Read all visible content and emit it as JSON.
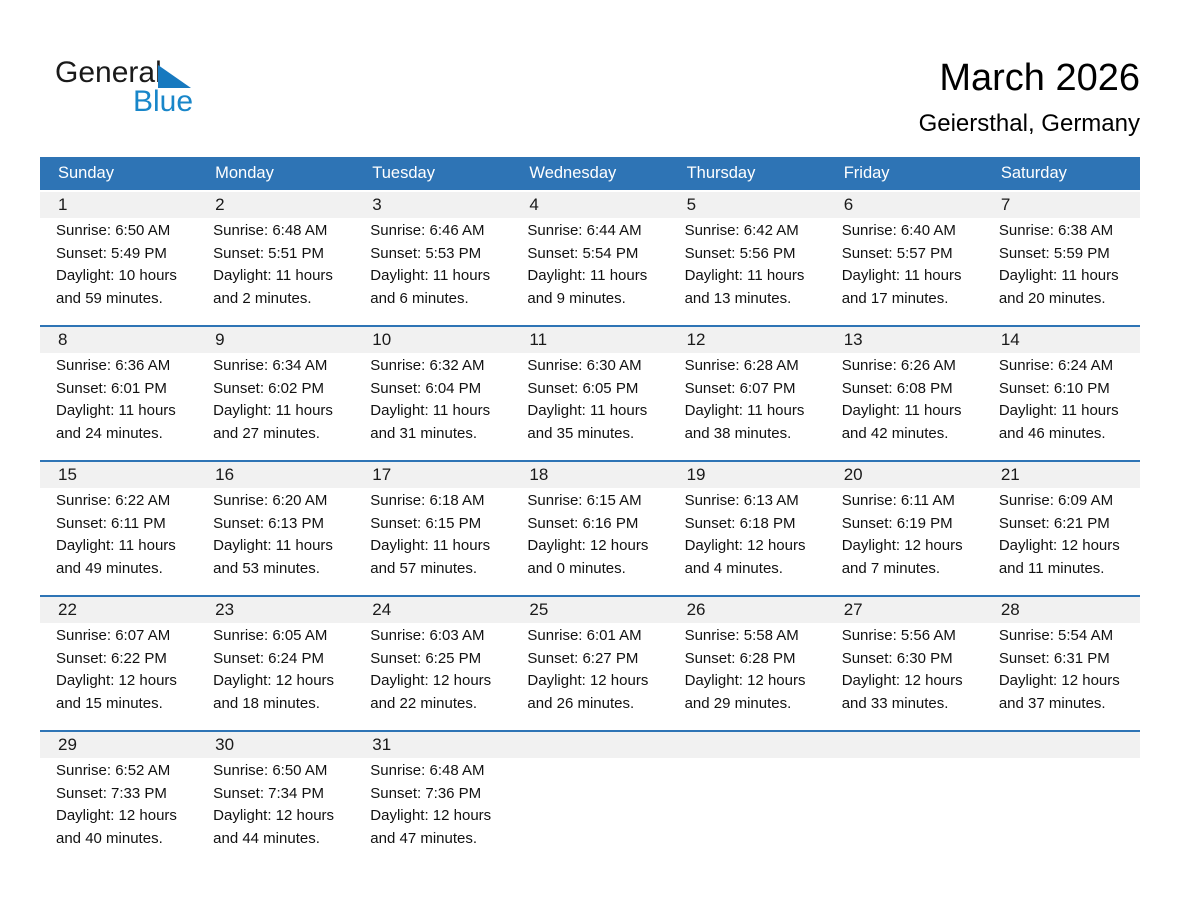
{
  "logo": {
    "general": "General",
    "blue": "Blue"
  },
  "header": {
    "title": "March 2026",
    "subtitle": "Geiersthal, Germany"
  },
  "weekdays": [
    "Sunday",
    "Monday",
    "Tuesday",
    "Wednesday",
    "Thursday",
    "Friday",
    "Saturday"
  ],
  "colors": {
    "header_bar": "#2E74B5",
    "week_divider": "#2E74B5",
    "day_band_bg": "#F1F1F1",
    "logo_blue": "#1886C9",
    "logo_triangle": "#1779BF"
  },
  "weeks": [
    {
      "days": [
        {
          "num": "1",
          "lines": [
            "Sunrise: 6:50 AM",
            "Sunset: 5:49 PM",
            "Daylight: 10 hours",
            "and 59 minutes."
          ]
        },
        {
          "num": "2",
          "lines": [
            "Sunrise: 6:48 AM",
            "Sunset: 5:51 PM",
            "Daylight: 11 hours",
            "and 2 minutes."
          ]
        },
        {
          "num": "3",
          "lines": [
            "Sunrise: 6:46 AM",
            "Sunset: 5:53 PM",
            "Daylight: 11 hours",
            "and 6 minutes."
          ]
        },
        {
          "num": "4",
          "lines": [
            "Sunrise: 6:44 AM",
            "Sunset: 5:54 PM",
            "Daylight: 11 hours",
            "and 9 minutes."
          ]
        },
        {
          "num": "5",
          "lines": [
            "Sunrise: 6:42 AM",
            "Sunset: 5:56 PM",
            "Daylight: 11 hours",
            "and 13 minutes."
          ]
        },
        {
          "num": "6",
          "lines": [
            "Sunrise: 6:40 AM",
            "Sunset: 5:57 PM",
            "Daylight: 11 hours",
            "and 17 minutes."
          ]
        },
        {
          "num": "7",
          "lines": [
            "Sunrise: 6:38 AM",
            "Sunset: 5:59 PM",
            "Daylight: 11 hours",
            "and 20 minutes."
          ]
        }
      ]
    },
    {
      "days": [
        {
          "num": "8",
          "lines": [
            "Sunrise: 6:36 AM",
            "Sunset: 6:01 PM",
            "Daylight: 11 hours",
            "and 24 minutes."
          ]
        },
        {
          "num": "9",
          "lines": [
            "Sunrise: 6:34 AM",
            "Sunset: 6:02 PM",
            "Daylight: 11 hours",
            "and 27 minutes."
          ]
        },
        {
          "num": "10",
          "lines": [
            "Sunrise: 6:32 AM",
            "Sunset: 6:04 PM",
            "Daylight: 11 hours",
            "and 31 minutes."
          ]
        },
        {
          "num": "11",
          "lines": [
            "Sunrise: 6:30 AM",
            "Sunset: 6:05 PM",
            "Daylight: 11 hours",
            "and 35 minutes."
          ]
        },
        {
          "num": "12",
          "lines": [
            "Sunrise: 6:28 AM",
            "Sunset: 6:07 PM",
            "Daylight: 11 hours",
            "and 38 minutes."
          ]
        },
        {
          "num": "13",
          "lines": [
            "Sunrise: 6:26 AM",
            "Sunset: 6:08 PM",
            "Daylight: 11 hours",
            "and 42 minutes."
          ]
        },
        {
          "num": "14",
          "lines": [
            "Sunrise: 6:24 AM",
            "Sunset: 6:10 PM",
            "Daylight: 11 hours",
            "and 46 minutes."
          ]
        }
      ]
    },
    {
      "days": [
        {
          "num": "15",
          "lines": [
            "Sunrise: 6:22 AM",
            "Sunset: 6:11 PM",
            "Daylight: 11 hours",
            "and 49 minutes."
          ]
        },
        {
          "num": "16",
          "lines": [
            "Sunrise: 6:20 AM",
            "Sunset: 6:13 PM",
            "Daylight: 11 hours",
            "and 53 minutes."
          ]
        },
        {
          "num": "17",
          "lines": [
            "Sunrise: 6:18 AM",
            "Sunset: 6:15 PM",
            "Daylight: 11 hours",
            "and 57 minutes."
          ]
        },
        {
          "num": "18",
          "lines": [
            "Sunrise: 6:15 AM",
            "Sunset: 6:16 PM",
            "Daylight: 12 hours",
            "and 0 minutes."
          ]
        },
        {
          "num": "19",
          "lines": [
            "Sunrise: 6:13 AM",
            "Sunset: 6:18 PM",
            "Daylight: 12 hours",
            "and 4 minutes."
          ]
        },
        {
          "num": "20",
          "lines": [
            "Sunrise: 6:11 AM",
            "Sunset: 6:19 PM",
            "Daylight: 12 hours",
            "and 7 minutes."
          ]
        },
        {
          "num": "21",
          "lines": [
            "Sunrise: 6:09 AM",
            "Sunset: 6:21 PM",
            "Daylight: 12 hours",
            "and 11 minutes."
          ]
        }
      ]
    },
    {
      "days": [
        {
          "num": "22",
          "lines": [
            "Sunrise: 6:07 AM",
            "Sunset: 6:22 PM",
            "Daylight: 12 hours",
            "and 15 minutes."
          ]
        },
        {
          "num": "23",
          "lines": [
            "Sunrise: 6:05 AM",
            "Sunset: 6:24 PM",
            "Daylight: 12 hours",
            "and 18 minutes."
          ]
        },
        {
          "num": "24",
          "lines": [
            "Sunrise: 6:03 AM",
            "Sunset: 6:25 PM",
            "Daylight: 12 hours",
            "and 22 minutes."
          ]
        },
        {
          "num": "25",
          "lines": [
            "Sunrise: 6:01 AM",
            "Sunset: 6:27 PM",
            "Daylight: 12 hours",
            "and 26 minutes."
          ]
        },
        {
          "num": "26",
          "lines": [
            "Sunrise: 5:58 AM",
            "Sunset: 6:28 PM",
            "Daylight: 12 hours",
            "and 29 minutes."
          ]
        },
        {
          "num": "27",
          "lines": [
            "Sunrise: 5:56 AM",
            "Sunset: 6:30 PM",
            "Daylight: 12 hours",
            "and 33 minutes."
          ]
        },
        {
          "num": "28",
          "lines": [
            "Sunrise: 5:54 AM",
            "Sunset: 6:31 PM",
            "Daylight: 12 hours",
            "and 37 minutes."
          ]
        }
      ]
    },
    {
      "days": [
        {
          "num": "29",
          "lines": [
            "Sunrise: 6:52 AM",
            "Sunset: 7:33 PM",
            "Daylight: 12 hours",
            "and 40 minutes."
          ]
        },
        {
          "num": "30",
          "lines": [
            "Sunrise: 6:50 AM",
            "Sunset: 7:34 PM",
            "Daylight: 12 hours",
            "and 44 minutes."
          ]
        },
        {
          "num": "31",
          "lines": [
            "Sunrise: 6:48 AM",
            "Sunset: 7:36 PM",
            "Daylight: 12 hours",
            "and 47 minutes."
          ]
        },
        {
          "num": "",
          "lines": []
        },
        {
          "num": "",
          "lines": []
        },
        {
          "num": "",
          "lines": []
        },
        {
          "num": "",
          "lines": []
        }
      ]
    }
  ]
}
